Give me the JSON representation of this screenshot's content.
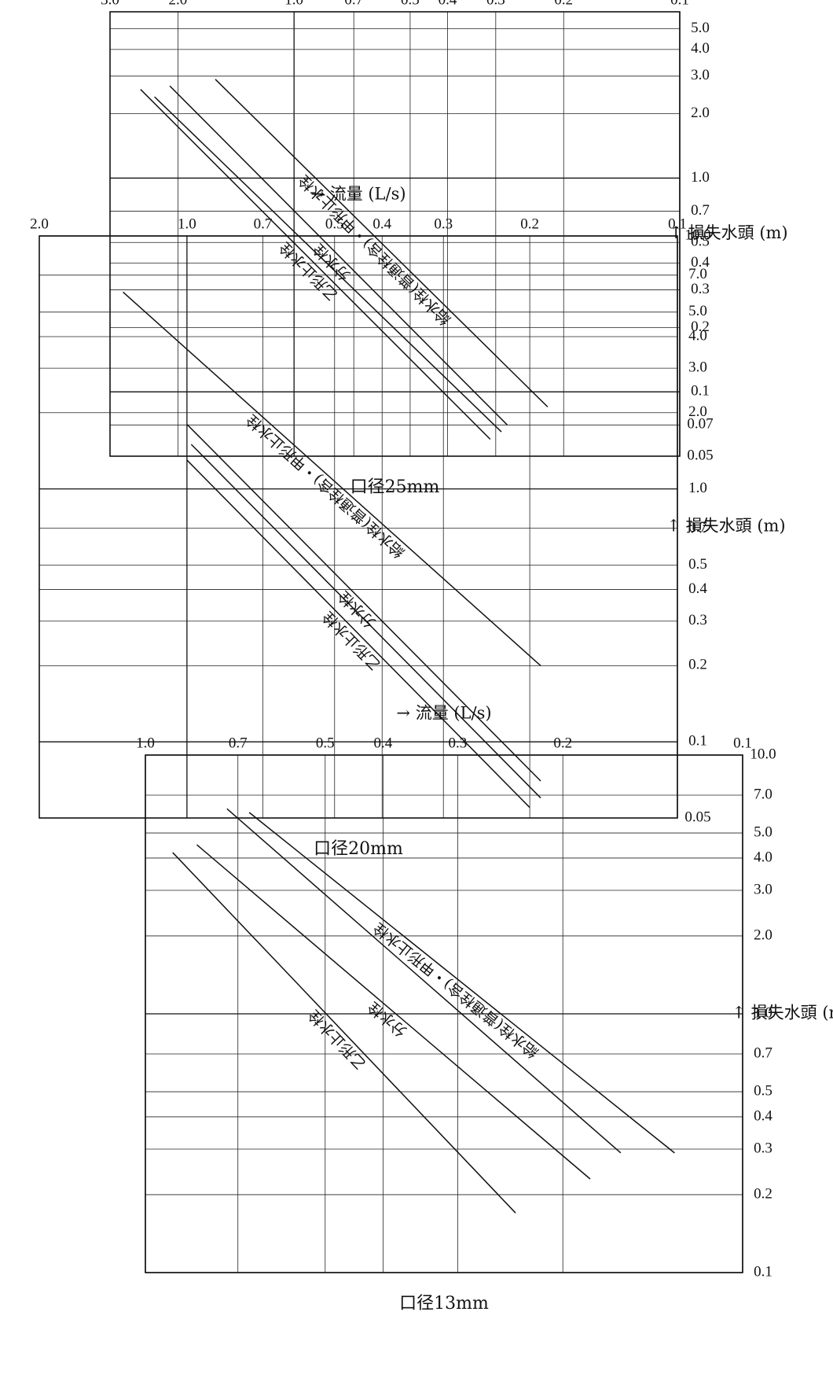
{
  "chart_data": [
    {
      "type": "line",
      "title": "口径13mm",
      "xlabel": "流量 (L/s)",
      "ylabel": "損失水頭 (m)",
      "xscale": "log",
      "yscale": "log",
      "xlim": [
        0.1,
        1.0
      ],
      "ylim": [
        0.1,
        10.0
      ],
      "grid": true,
      "xticks": [
        "0.1",
        "0.2",
        "0.3",
        "0.4",
        "0.5",
        "0.7",
        "1.0"
      ],
      "yticks": [
        "0.1",
        "0.2",
        "0.3",
        "0.4",
        "0.5",
        "0.7",
        "1.0",
        "2.0",
        "3.0",
        "4.0",
        "5.0",
        "7.0",
        "10.0"
      ],
      "series": [
        {
          "name": "給水栓(普通栓含)・甲形止水栓",
          "x": [
            0.13,
            0.67
          ],
          "y": [
            0.29,
            6.0
          ]
        },
        {
          "name": "",
          "x": [
            0.16,
            0.73
          ],
          "y": [
            0.29,
            6.2
          ]
        },
        {
          "name": "分水栓",
          "x": [
            0.18,
            0.82
          ],
          "y": [
            0.23,
            4.5
          ]
        },
        {
          "name": "乙形止水栓",
          "x": [
            0.24,
            0.9
          ],
          "y": [
            0.17,
            4.2
          ]
        }
      ]
    },
    {
      "type": "line",
      "title": "口径20mm",
      "xlabel": "流量 (L/s)",
      "ylabel": "損失水頭 (m)",
      "xscale": "log",
      "yscale": "log",
      "xlim": [
        0.1,
        2.0
      ],
      "ylim": [
        0.05,
        10.0
      ],
      "grid": true,
      "xticks": [
        "0.1",
        "0.2",
        "0.3",
        "0.4",
        "0.5",
        "0.7",
        "1.0",
        "2.0"
      ],
      "yticks": [
        "0.05",
        "0.1",
        "0.2",
        "0.3",
        "0.4",
        "0.5",
        "0.7",
        "1.0",
        "2.0",
        "3.0",
        "4.0",
        "5.0",
        "7.0",
        "10.0"
      ],
      "series": [
        {
          "name": "給水栓(普通栓含)・甲形止水栓",
          "x": [
            0.19,
            1.35
          ],
          "y": [
            0.2,
            6.0
          ]
        },
        {
          "name": "分水栓",
          "x": [
            0.19,
            1.0
          ],
          "y": [
            0.07,
            1.8
          ]
        },
        {
          "name": "",
          "x": [
            0.19,
            0.98
          ],
          "y": [
            0.06,
            1.5
          ]
        },
        {
          "name": "乙形止水栓",
          "x": [
            0.2,
            1.0
          ],
          "y": [
            0.055,
            1.3
          ]
        }
      ]
    },
    {
      "type": "line",
      "title": "口径25mm",
      "xlabel": "流量 (L/s)",
      "ylabel": "損失水頭 (m)",
      "xscale": "log",
      "yscale": "log",
      "xlim": [
        0.1,
        3.0
      ],
      "ylim": [
        0.05,
        6.0
      ],
      "grid": true,
      "xticks": [
        "0.1",
        "0.2",
        "0.3",
        "0.4",
        "0.5",
        "0.7",
        "1.0",
        "2.0",
        "3.0"
      ],
      "yticks": [
        "0.05",
        "0.07",
        "0.1",
        "0.2",
        "0.3",
        "0.4",
        "0.5",
        "0.7",
        "1.0",
        "2.0",
        "3.0",
        "4.0",
        "5.0"
      ],
      "series": [
        {
          "name": "給水栓(普通栓含)・甲形止水栓",
          "x": [
            0.22,
            1.6
          ],
          "y": [
            0.085,
            2.9
          ]
        },
        {
          "name": "分水栓",
          "x": [
            0.28,
            2.1
          ],
          "y": [
            0.07,
            2.7
          ]
        },
        {
          "name": "",
          "x": [
            0.29,
            2.3
          ],
          "y": [
            0.065,
            2.4
          ]
        },
        {
          "name": "乙形止水栓",
          "x": [
            0.31,
            2.5
          ],
          "y": [
            0.06,
            2.6
          ]
        }
      ]
    }
  ]
}
